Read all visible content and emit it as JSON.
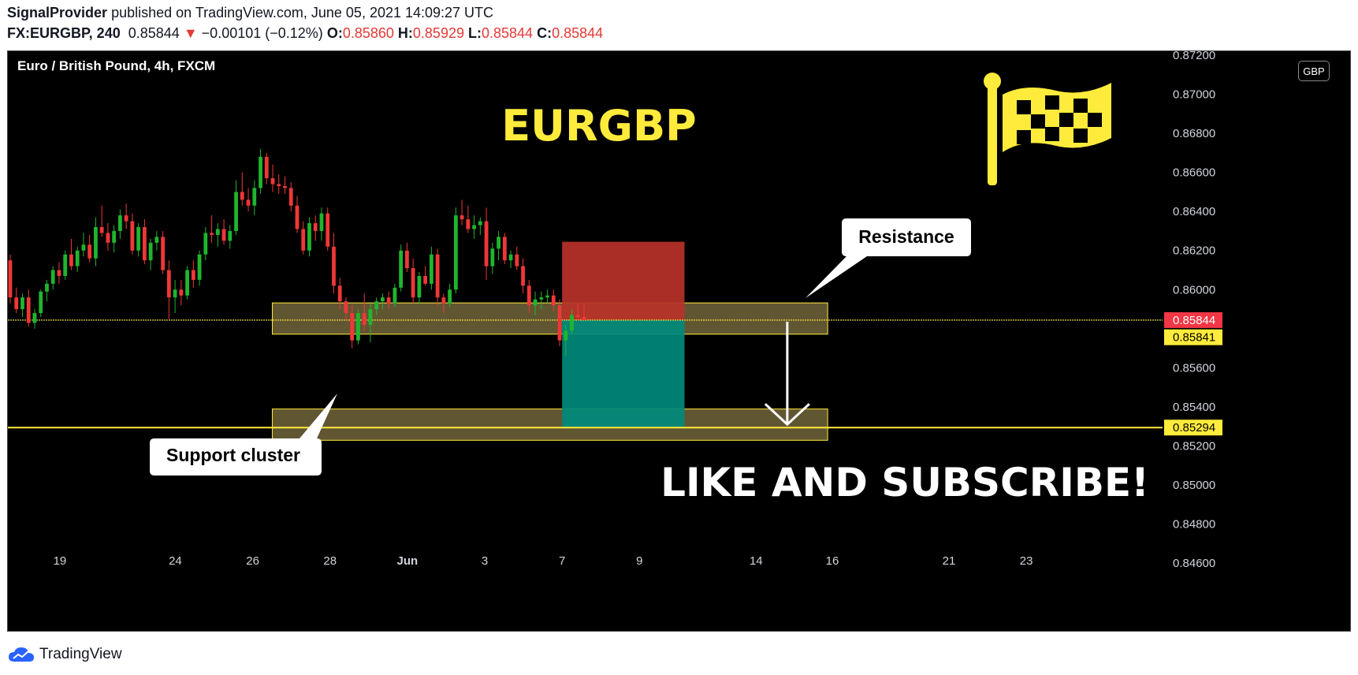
{
  "header": {
    "author": "SignalProvider",
    "published": "published on TradingView.com, June 05, 2021 14:09:27 UTC",
    "symbol": "FX:EURGBP, 240",
    "last": "0.85844",
    "change_arrow": "▼",
    "change": "−0.00101 (−0.12%)",
    "o_label": "O:",
    "o_value": "0.85860",
    "h_label": "H:",
    "h_value": "0.85929",
    "l_label": "L:",
    "l_value": "0.85844",
    "c_label": "C:",
    "c_value": "0.85844"
  },
  "footer": {
    "brand": "TradingView",
    "icon": "tradingview-cloud-icon"
  },
  "currency_button": "GBP",
  "colors": {
    "up": "#26a69a",
    "down": "#ef3737",
    "zone": "#6b5f37",
    "zone_border": "#ffeb3b",
    "yellow": "#ffeb3b",
    "stop": "#b83228",
    "target": "#00897b",
    "flag": "#ffeb3b"
  },
  "chart_data": {
    "type": "candlestick",
    "instrument_title": "Euro / British Pound, 4h, FXCM",
    "title": "EURGBP",
    "annotation_main": "LIKE AND SUBSCRIBE!",
    "ylim": [
      0.8452,
      0.8722
    ],
    "y_ticks": [
      "0.87200",
      "0.87000",
      "0.86800",
      "0.86600",
      "0.86400",
      "0.86200",
      "0.86000",
      "0.85600",
      "0.85400",
      "0.85200",
      "0.85000",
      "0.84800",
      "0.84600"
    ],
    "x_ticks": [
      {
        "label": "19",
        "x": 0.045
      },
      {
        "label": "24",
        "x": 0.145
      },
      {
        "label": "26",
        "x": 0.212
      },
      {
        "label": "28",
        "x": 0.279
      },
      {
        "label": "Jun",
        "x": 0.346
      },
      {
        "label": "3",
        "x": 0.413
      },
      {
        "label": "7",
        "x": 0.48
      },
      {
        "label": "9",
        "x": 0.547
      },
      {
        "label": "14",
        "x": 0.648
      },
      {
        "label": "16",
        "x": 0.714
      },
      {
        "label": "21",
        "x": 0.815
      },
      {
        "label": "23",
        "x": 0.882
      }
    ],
    "price_labels": [
      {
        "value": "0.85844",
        "price": 0.85844,
        "style": "red"
      },
      {
        "value": "0.85841",
        "price": 0.85841,
        "style": "yellow"
      },
      {
        "value": "0.85294",
        "price": 0.85294,
        "style": "yellow"
      }
    ],
    "levels": [
      0.85844,
      0.85294
    ],
    "zones": [
      {
        "name": "resistance-zone",
        "x0": 0.229,
        "x1": 0.71,
        "top": 0.85932,
        "bottom": 0.85772
      },
      {
        "name": "support-zone",
        "x0": 0.229,
        "x1": 0.71,
        "top": 0.85389,
        "bottom": 0.85229
      }
    ],
    "position": {
      "x0": 0.48,
      "x1": 0.586,
      "stop_top": 0.86245,
      "entry": 0.85844,
      "target": 0.85294
    },
    "callouts": [
      {
        "name": "resistance-callout",
        "text": "Resistance"
      },
      {
        "name": "support-callout",
        "text": "Support cluster"
      }
    ],
    "arrow": {
      "x": 0.675,
      "from": 0.85844,
      "to": 0.85294
    },
    "ohlc": [
      [
        0.8615,
        0.8618,
        0.8593,
        0.8596
      ],
      [
        0.8596,
        0.8601,
        0.8588,
        0.859
      ],
      [
        0.859,
        0.8598,
        0.8586,
        0.8596
      ],
      [
        0.8596,
        0.86,
        0.8581,
        0.8583
      ],
      [
        0.8583,
        0.859,
        0.858,
        0.8588
      ],
      [
        0.8588,
        0.86,
        0.8586,
        0.8599
      ],
      [
        0.8599,
        0.8605,
        0.8594,
        0.8603
      ],
      [
        0.8603,
        0.8612,
        0.86,
        0.861
      ],
      [
        0.861,
        0.8614,
        0.8603,
        0.8607
      ],
      [
        0.8607,
        0.862,
        0.8605,
        0.8618
      ],
      [
        0.8618,
        0.8626,
        0.861,
        0.8612
      ],
      [
        0.8612,
        0.8622,
        0.8609,
        0.862
      ],
      [
        0.862,
        0.8629,
        0.8617,
        0.8623
      ],
      [
        0.8623,
        0.8628,
        0.8614,
        0.8616
      ],
      [
        0.8616,
        0.8637,
        0.8612,
        0.8632
      ],
      [
        0.8632,
        0.8643,
        0.8627,
        0.8629
      ],
      [
        0.8629,
        0.8634,
        0.862,
        0.8624
      ],
      [
        0.8624,
        0.8633,
        0.8619,
        0.863
      ],
      [
        0.863,
        0.8641,
        0.8626,
        0.8638
      ],
      [
        0.8638,
        0.8644,
        0.8631,
        0.8635
      ],
      [
        0.8635,
        0.8639,
        0.8618,
        0.862
      ],
      [
        0.862,
        0.8634,
        0.8617,
        0.8632
      ],
      [
        0.8632,
        0.8636,
        0.8613,
        0.8615
      ],
      [
        0.8615,
        0.8626,
        0.861,
        0.8624
      ],
      [
        0.8624,
        0.863,
        0.862,
        0.8627
      ],
      [
        0.8627,
        0.863,
        0.8608,
        0.861
      ],
      [
        0.861,
        0.8615,
        0.8585,
        0.8596
      ],
      [
        0.8596,
        0.8605,
        0.8588,
        0.86
      ],
      [
        0.86,
        0.8605,
        0.8592,
        0.8597
      ],
      [
        0.8597,
        0.8612,
        0.8595,
        0.861
      ],
      [
        0.861,
        0.8615,
        0.8601,
        0.8605
      ],
      [
        0.8605,
        0.862,
        0.8602,
        0.8618
      ],
      [
        0.8618,
        0.8632,
        0.8615,
        0.8629
      ],
      [
        0.8629,
        0.8638,
        0.8624,
        0.8628
      ],
      [
        0.8628,
        0.8634,
        0.8622,
        0.8631
      ],
      [
        0.8631,
        0.8636,
        0.8623,
        0.8625
      ],
      [
        0.8625,
        0.8633,
        0.8621,
        0.863
      ],
      [
        0.863,
        0.8656,
        0.8628,
        0.865
      ],
      [
        0.865,
        0.866,
        0.8643,
        0.8646
      ],
      [
        0.8646,
        0.8652,
        0.864,
        0.8643
      ],
      [
        0.8643,
        0.8656,
        0.8638,
        0.8652
      ],
      [
        0.8652,
        0.8672,
        0.8649,
        0.8668
      ],
      [
        0.8668,
        0.867,
        0.8654,
        0.8657
      ],
      [
        0.8657,
        0.8664,
        0.865,
        0.8654
      ],
      [
        0.8654,
        0.8659,
        0.8649,
        0.8653
      ],
      [
        0.8653,
        0.8658,
        0.8649,
        0.8652
      ],
      [
        0.8652,
        0.8655,
        0.864,
        0.8643
      ],
      [
        0.8643,
        0.8648,
        0.8629,
        0.8631
      ],
      [
        0.8631,
        0.8635,
        0.8618,
        0.862
      ],
      [
        0.862,
        0.8637,
        0.8617,
        0.8634
      ],
      [
        0.8634,
        0.8638,
        0.8625,
        0.863
      ],
      [
        0.863,
        0.8642,
        0.8625,
        0.8639
      ],
      [
        0.8639,
        0.8642,
        0.862,
        0.8622
      ],
      [
        0.8622,
        0.8629,
        0.8598,
        0.8602
      ],
      [
        0.8602,
        0.8606,
        0.859,
        0.8594
      ],
      [
        0.8594,
        0.8596,
        0.8584,
        0.8588
      ],
      [
        0.8588,
        0.8592,
        0.857,
        0.8574
      ],
      [
        0.8574,
        0.859,
        0.8572,
        0.8588
      ],
      [
        0.8588,
        0.8598,
        0.8579,
        0.8582
      ],
      [
        0.8582,
        0.8593,
        0.8573,
        0.859
      ],
      [
        0.859,
        0.8596,
        0.8587,
        0.8594
      ],
      [
        0.8594,
        0.8598,
        0.859,
        0.8596
      ],
      [
        0.8596,
        0.8599,
        0.859,
        0.8593
      ],
      [
        0.8593,
        0.8603,
        0.8591,
        0.8601
      ],
      [
        0.8601,
        0.8623,
        0.8599,
        0.862
      ],
      [
        0.862,
        0.8624,
        0.8609,
        0.8611
      ],
      [
        0.8611,
        0.8616,
        0.8593,
        0.8596
      ],
      [
        0.8596,
        0.8609,
        0.8593,
        0.8607
      ],
      [
        0.8607,
        0.8612,
        0.8602,
        0.8603
      ],
      [
        0.8603,
        0.8622,
        0.86,
        0.8618
      ],
      [
        0.8618,
        0.8621,
        0.8592,
        0.8596
      ],
      [
        0.8596,
        0.8598,
        0.8588,
        0.8593
      ],
      [
        0.8593,
        0.8603,
        0.8591,
        0.86
      ],
      [
        0.86,
        0.8642,
        0.8598,
        0.8638
      ],
      [
        0.8638,
        0.8646,
        0.8633,
        0.8636
      ],
      [
        0.8636,
        0.8643,
        0.8629,
        0.8631
      ],
      [
        0.8631,
        0.8638,
        0.8626,
        0.8633
      ],
      [
        0.8633,
        0.8637,
        0.8628,
        0.8635
      ],
      [
        0.8635,
        0.8642,
        0.8605,
        0.8612
      ],
      [
        0.8612,
        0.8624,
        0.8608,
        0.8621
      ],
      [
        0.8621,
        0.863,
        0.8615,
        0.8627
      ],
      [
        0.8627,
        0.8629,
        0.8613,
        0.8615
      ],
      [
        0.8615,
        0.862,
        0.8611,
        0.8618
      ],
      [
        0.8618,
        0.8622,
        0.861,
        0.8612
      ],
      [
        0.8612,
        0.8616,
        0.8598,
        0.8602
      ],
      [
        0.8602,
        0.8605,
        0.8588,
        0.8592
      ],
      [
        0.8592,
        0.8599,
        0.8587,
        0.8595
      ],
      [
        0.8595,
        0.8599,
        0.859,
        0.8596
      ],
      [
        0.8596,
        0.86,
        0.8593,
        0.8597
      ],
      [
        0.8597,
        0.86,
        0.8589,
        0.8592
      ],
      [
        0.8592,
        0.8595,
        0.8571,
        0.8574
      ],
      [
        0.8574,
        0.8582,
        0.8566,
        0.8579
      ],
      [
        0.8579,
        0.859,
        0.8577,
        0.8587
      ],
      [
        0.8587,
        0.8593,
        0.8584,
        0.8586
      ],
      [
        0.8586,
        0.85929,
        0.85844,
        0.85844
      ]
    ]
  }
}
